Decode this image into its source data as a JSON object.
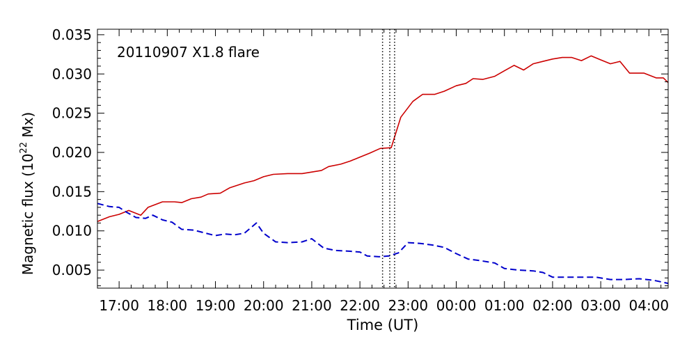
{
  "chart_data": {
    "type": "line",
    "annotation": "20110907 X1.8 flare",
    "xlabel": "Time (UT)",
    "ylabel_main": "Magnetic flux (10",
    "ylabel_sup": "22",
    "ylabel_tail": " Mx)",
    "x_unit": "hours since 2011-09-07 00:00 UT",
    "xlim": [
      16.55,
      28.4
    ],
    "ylim": [
      0.0027,
      0.0357
    ],
    "xticks": [
      {
        "x": 17,
        "label": "17:00"
      },
      {
        "x": 18,
        "label": "18:00"
      },
      {
        "x": 19,
        "label": "19:00"
      },
      {
        "x": 20,
        "label": "20:00"
      },
      {
        "x": 21,
        "label": "21:00"
      },
      {
        "x": 22,
        "label": "22:00"
      },
      {
        "x": 23,
        "label": "23:00"
      },
      {
        "x": 24,
        "label": "00:00"
      },
      {
        "x": 25,
        "label": "01:00"
      },
      {
        "x": 26,
        "label": "02:00"
      },
      {
        "x": 27,
        "label": "03:00"
      },
      {
        "x": 28,
        "label": "04:00"
      }
    ],
    "yticks": [
      {
        "y": 0.005,
        "label": "0.005"
      },
      {
        "y": 0.01,
        "label": "0.010"
      },
      {
        "y": 0.015,
        "label": "0.015"
      },
      {
        "y": 0.02,
        "label": "0.020"
      },
      {
        "y": 0.025,
        "label": "0.025"
      },
      {
        "y": 0.03,
        "label": "0.030"
      },
      {
        "y": 0.035,
        "label": "0.035"
      }
    ],
    "vlines": [
      22.47,
      22.62,
      22.72
    ],
    "grid": false,
    "series": [
      {
        "color": "#cc0000",
        "style": "solid",
        "points": [
          [
            16.55,
            0.0112
          ],
          [
            16.8,
            0.0118
          ],
          [
            17.0,
            0.0121
          ],
          [
            17.2,
            0.0126
          ],
          [
            17.45,
            0.012
          ],
          [
            17.6,
            0.013
          ],
          [
            17.9,
            0.0137
          ],
          [
            18.15,
            0.0137
          ],
          [
            18.3,
            0.0136
          ],
          [
            18.5,
            0.0141
          ],
          [
            18.7,
            0.0143
          ],
          [
            18.85,
            0.0147
          ],
          [
            19.1,
            0.0148
          ],
          [
            19.3,
            0.0155
          ],
          [
            19.6,
            0.0161
          ],
          [
            19.8,
            0.0164
          ],
          [
            20.0,
            0.0169
          ],
          [
            20.2,
            0.0172
          ],
          [
            20.5,
            0.0173
          ],
          [
            20.8,
            0.0173
          ],
          [
            21.0,
            0.0175
          ],
          [
            21.2,
            0.0177
          ],
          [
            21.35,
            0.0182
          ],
          [
            21.6,
            0.0185
          ],
          [
            21.8,
            0.0189
          ],
          [
            22.0,
            0.0194
          ],
          [
            22.2,
            0.0199
          ],
          [
            22.42,
            0.0205
          ],
          [
            22.65,
            0.0206
          ],
          [
            22.85,
            0.0245
          ],
          [
            23.1,
            0.0265
          ],
          [
            23.3,
            0.0274
          ],
          [
            23.55,
            0.0274
          ],
          [
            23.75,
            0.0278
          ],
          [
            24.0,
            0.0285
          ],
          [
            24.2,
            0.0288
          ],
          [
            24.35,
            0.0294
          ],
          [
            24.55,
            0.0293
          ],
          [
            24.8,
            0.0297
          ],
          [
            25.0,
            0.0304
          ],
          [
            25.2,
            0.0311
          ],
          [
            25.4,
            0.0305
          ],
          [
            25.6,
            0.0313
          ],
          [
            25.8,
            0.0316
          ],
          [
            26.0,
            0.0319
          ],
          [
            26.2,
            0.0321
          ],
          [
            26.4,
            0.0321
          ],
          [
            26.6,
            0.0317
          ],
          [
            26.8,
            0.0323
          ],
          [
            27.0,
            0.0318
          ],
          [
            27.2,
            0.0313
          ],
          [
            27.4,
            0.0316
          ],
          [
            27.6,
            0.0301
          ],
          [
            27.9,
            0.0301
          ],
          [
            28.15,
            0.0295
          ],
          [
            28.3,
            0.0295
          ],
          [
            28.4,
            0.0289
          ]
        ]
      },
      {
        "color": "#0000cc",
        "style": "dashed",
        "points": [
          [
            16.55,
            0.0135
          ],
          [
            16.8,
            0.0131
          ],
          [
            17.0,
            0.013
          ],
          [
            17.15,
            0.0124
          ],
          [
            17.35,
            0.0117
          ],
          [
            17.55,
            0.0116
          ],
          [
            17.7,
            0.012
          ],
          [
            17.9,
            0.0114
          ],
          [
            18.1,
            0.0111
          ],
          [
            18.3,
            0.0102
          ],
          [
            18.55,
            0.0101
          ],
          [
            18.8,
            0.0097
          ],
          [
            19.0,
            0.0094
          ],
          [
            19.2,
            0.0096
          ],
          [
            19.4,
            0.0095
          ],
          [
            19.6,
            0.0097
          ],
          [
            19.85,
            0.011
          ],
          [
            20.0,
            0.0097
          ],
          [
            20.25,
            0.0086
          ],
          [
            20.5,
            0.0085
          ],
          [
            20.8,
            0.0086
          ],
          [
            21.0,
            0.009
          ],
          [
            21.25,
            0.0078
          ],
          [
            21.5,
            0.0075
          ],
          [
            21.8,
            0.0074
          ],
          [
            22.0,
            0.0073
          ],
          [
            22.15,
            0.0068
          ],
          [
            22.4,
            0.0067
          ],
          [
            22.6,
            0.0068
          ],
          [
            22.8,
            0.0072
          ],
          [
            23.0,
            0.0085
          ],
          [
            23.25,
            0.0084
          ],
          [
            23.5,
            0.0082
          ],
          [
            23.75,
            0.0079
          ],
          [
            24.0,
            0.0071
          ],
          [
            24.25,
            0.0064
          ],
          [
            24.5,
            0.0062
          ],
          [
            24.8,
            0.0059
          ],
          [
            25.0,
            0.0052
          ],
          [
            25.3,
            0.005
          ],
          [
            25.6,
            0.0049
          ],
          [
            25.8,
            0.0047
          ],
          [
            26.0,
            0.0041
          ],
          [
            26.3,
            0.0041
          ],
          [
            26.6,
            0.0041
          ],
          [
            26.9,
            0.0041
          ],
          [
            27.2,
            0.0038
          ],
          [
            27.5,
            0.0038
          ],
          [
            27.8,
            0.0039
          ],
          [
            28.1,
            0.0037
          ],
          [
            28.4,
            0.0033
          ]
        ]
      }
    ]
  }
}
